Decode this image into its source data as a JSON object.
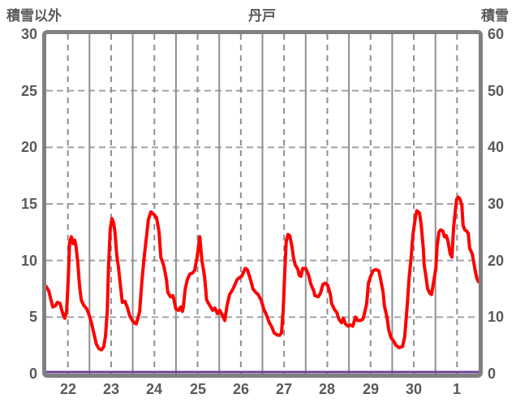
{
  "header": {
    "left_axis_title": "積雪以外",
    "chart_title": "丹戸",
    "right_axis_title": "積雪"
  },
  "theme": {
    "text_color": "#595959",
    "border_color": "#808080",
    "grid_solid_color": "#8f8f8f",
    "grid_dashed_color": "#a3a3a3",
    "main_series_color": "#fe0000",
    "snow_series_color": "#6b4199"
  },
  "chart_data": {
    "type": "line",
    "title": "丹戸",
    "left_axis": {
      "label": "積雪以外",
      "min": 0,
      "max": 30,
      "ticks": [
        30,
        25,
        20,
        15,
        10,
        5,
        0
      ]
    },
    "right_axis": {
      "label": "積雪",
      "min": 0,
      "max": 60,
      "ticks": [
        60,
        50,
        40,
        30,
        20,
        10,
        0
      ]
    },
    "x_axis": {
      "categories": [
        "22",
        "23",
        "24",
        "25",
        "26",
        "27",
        "28",
        "29",
        "30",
        "1"
      ],
      "days": 10
    },
    "grid": {
      "horizontal": "dashed at left-axis ticks 5..25",
      "vertical_solid": "day boundaries",
      "vertical_dashed": "half-day",
      "legend": "none"
    },
    "series": [
      {
        "name": "積雪以外",
        "axis": "left",
        "color": "#fe0000",
        "points": [
          [
            0.0,
            7.7
          ],
          [
            0.06,
            7.3
          ],
          [
            0.11,
            6.5
          ],
          [
            0.15,
            5.9
          ],
          [
            0.21,
            6.0
          ],
          [
            0.26,
            6.3
          ],
          [
            0.32,
            6.2
          ],
          [
            0.36,
            5.6
          ],
          [
            0.39,
            5.2
          ],
          [
            0.43,
            4.9
          ],
          [
            0.47,
            5.5
          ],
          [
            0.51,
            8.5
          ],
          [
            0.54,
            11.6
          ],
          [
            0.58,
            12.1
          ],
          [
            0.62,
            11.5
          ],
          [
            0.66,
            11.8
          ],
          [
            0.69,
            11.2
          ],
          [
            0.73,
            9.8
          ],
          [
            0.77,
            7.8
          ],
          [
            0.81,
            6.5
          ],
          [
            0.86,
            6.1
          ],
          [
            0.94,
            5.7
          ],
          [
            0.99,
            5.2
          ],
          [
            1.05,
            4.4
          ],
          [
            1.11,
            3.4
          ],
          [
            1.16,
            2.6
          ],
          [
            1.22,
            2.2
          ],
          [
            1.28,
            2.1
          ],
          [
            1.33,
            2.4
          ],
          [
            1.37,
            3.3
          ],
          [
            1.41,
            5.5
          ],
          [
            1.44,
            9.5
          ],
          [
            1.48,
            12.8
          ],
          [
            1.52,
            13.7
          ],
          [
            1.56,
            13.3
          ],
          [
            1.59,
            12.5
          ],
          [
            1.63,
            10.5
          ],
          [
            1.67,
            9.4
          ],
          [
            1.73,
            7.3
          ],
          [
            1.76,
            6.3
          ],
          [
            1.82,
            6.4
          ],
          [
            1.88,
            5.8
          ],
          [
            1.93,
            5.1
          ],
          [
            1.99,
            4.7
          ],
          [
            2.03,
            4.5
          ],
          [
            2.08,
            4.4
          ],
          [
            2.12,
            4.9
          ],
          [
            2.16,
            5.5
          ],
          [
            2.21,
            8.1
          ],
          [
            2.27,
            10.5
          ],
          [
            2.33,
            12.5
          ],
          [
            2.36,
            13.6
          ],
          [
            2.42,
            14.3
          ],
          [
            2.48,
            14.1
          ],
          [
            2.55,
            13.8
          ],
          [
            2.61,
            12.5
          ],
          [
            2.65,
            10.3
          ],
          [
            2.72,
            9.5
          ],
          [
            2.78,
            8.3
          ],
          [
            2.81,
            7.2
          ],
          [
            2.87,
            6.8
          ],
          [
            2.93,
            6.9
          ],
          [
            3.0,
            5.7
          ],
          [
            3.06,
            5.6
          ],
          [
            3.11,
            5.9
          ],
          [
            3.15,
            5.5
          ],
          [
            3.17,
            5.9
          ],
          [
            3.21,
            7.4
          ],
          [
            3.26,
            8.3
          ],
          [
            3.32,
            8.8
          ],
          [
            3.38,
            8.9
          ],
          [
            3.43,
            9.1
          ],
          [
            3.49,
            10.3
          ],
          [
            3.55,
            12.1
          ],
          [
            3.6,
            10.0
          ],
          [
            3.66,
            8.6
          ],
          [
            3.71,
            6.5
          ],
          [
            3.77,
            6.1
          ],
          [
            3.85,
            5.6
          ],
          [
            3.9,
            5.8
          ],
          [
            3.96,
            5.3
          ],
          [
            4.01,
            5.6
          ],
          [
            4.07,
            5.2
          ],
          [
            4.13,
            4.7
          ],
          [
            4.18,
            6.0
          ],
          [
            4.24,
            7.0
          ],
          [
            4.32,
            7.5
          ],
          [
            4.41,
            8.3
          ],
          [
            4.47,
            8.5
          ],
          [
            4.52,
            8.6
          ],
          [
            4.6,
            9.3
          ],
          [
            4.65,
            9.2
          ],
          [
            4.71,
            8.5
          ],
          [
            4.78,
            7.5
          ],
          [
            4.84,
            7.2
          ],
          [
            4.9,
            7.0
          ],
          [
            4.97,
            6.5
          ],
          [
            5.03,
            5.7
          ],
          [
            5.08,
            5.3
          ],
          [
            5.16,
            4.5
          ],
          [
            5.22,
            4.1
          ],
          [
            5.27,
            3.6
          ],
          [
            5.35,
            3.4
          ],
          [
            5.4,
            3.4
          ],
          [
            5.44,
            3.6
          ],
          [
            5.48,
            5.7
          ],
          [
            5.52,
            9.3
          ],
          [
            5.55,
            11.7
          ],
          [
            5.59,
            12.3
          ],
          [
            5.63,
            12.2
          ],
          [
            5.68,
            11.3
          ],
          [
            5.72,
            10.2
          ],
          [
            5.76,
            9.6
          ],
          [
            5.82,
            9.2
          ],
          [
            5.85,
            8.7
          ],
          [
            5.89,
            8.6
          ],
          [
            5.93,
            9.3
          ],
          [
            6.0,
            9.3
          ],
          [
            6.06,
            8.8
          ],
          [
            6.12,
            7.9
          ],
          [
            6.19,
            7.3
          ],
          [
            6.21,
            6.9
          ],
          [
            6.29,
            6.8
          ],
          [
            6.34,
            7.1
          ],
          [
            6.4,
            7.9
          ],
          [
            6.45,
            8.0
          ],
          [
            6.51,
            7.8
          ],
          [
            6.57,
            7.0
          ],
          [
            6.6,
            6.2
          ],
          [
            6.66,
            5.7
          ],
          [
            6.72,
            5.4
          ],
          [
            6.77,
            4.8
          ],
          [
            6.83,
            4.5
          ],
          [
            6.87,
            4.9
          ],
          [
            6.92,
            4.4
          ],
          [
            6.98,
            4.2
          ],
          [
            7.04,
            4.3
          ],
          [
            7.09,
            4.2
          ],
          [
            7.15,
            5.0
          ],
          [
            7.2,
            4.7
          ],
          [
            7.26,
            4.7
          ],
          [
            7.32,
            4.8
          ],
          [
            7.35,
            5.2
          ],
          [
            7.41,
            6.2
          ],
          [
            7.45,
            8.0
          ],
          [
            7.5,
            8.6
          ],
          [
            7.56,
            9.1
          ],
          [
            7.62,
            9.2
          ],
          [
            7.69,
            9.1
          ],
          [
            7.73,
            8.4
          ],
          [
            7.79,
            7.2
          ],
          [
            7.82,
            6.0
          ],
          [
            7.88,
            5.0
          ],
          [
            7.92,
            3.9
          ],
          [
            7.97,
            3.2
          ],
          [
            8.03,
            2.9
          ],
          [
            8.09,
            2.5
          ],
          [
            8.16,
            2.3
          ],
          [
            8.24,
            2.4
          ],
          [
            8.29,
            3.3
          ],
          [
            8.35,
            6.2
          ],
          [
            8.39,
            8.4
          ],
          [
            8.44,
            10.4
          ],
          [
            8.48,
            12.3
          ],
          [
            8.54,
            13.9
          ],
          [
            8.57,
            14.4
          ],
          [
            8.63,
            14.2
          ],
          [
            8.67,
            13.2
          ],
          [
            8.72,
            11.0
          ],
          [
            8.74,
            9.6
          ],
          [
            8.78,
            8.6
          ],
          [
            8.82,
            7.5
          ],
          [
            8.87,
            7.1
          ],
          [
            8.91,
            7.0
          ],
          [
            8.95,
            7.9
          ],
          [
            9.01,
            9.3
          ],
          [
            9.04,
            11.3
          ],
          [
            9.08,
            12.5
          ],
          [
            9.12,
            12.7
          ],
          [
            9.17,
            12.6
          ],
          [
            9.21,
            12.1
          ],
          [
            9.25,
            12.2
          ],
          [
            9.29,
            11.7
          ],
          [
            9.34,
            10.6
          ],
          [
            9.38,
            10.3
          ],
          [
            9.42,
            12.9
          ],
          [
            9.46,
            14.4
          ],
          [
            9.49,
            15.4
          ],
          [
            9.53,
            15.6
          ],
          [
            9.57,
            15.4
          ],
          [
            9.61,
            14.9
          ],
          [
            9.64,
            13.1
          ],
          [
            9.68,
            12.7
          ],
          [
            9.72,
            12.6
          ],
          [
            9.76,
            12.4
          ],
          [
            9.79,
            11.1
          ],
          [
            9.85,
            10.6
          ],
          [
            9.89,
            9.8
          ],
          [
            9.92,
            9.1
          ],
          [
            9.96,
            8.4
          ],
          [
            10.0,
            8.1
          ]
        ]
      },
      {
        "name": "積雪",
        "axis": "right",
        "color": "#6b4199",
        "points": [
          [
            0,
            0
          ],
          [
            10,
            0
          ]
        ]
      }
    ]
  }
}
